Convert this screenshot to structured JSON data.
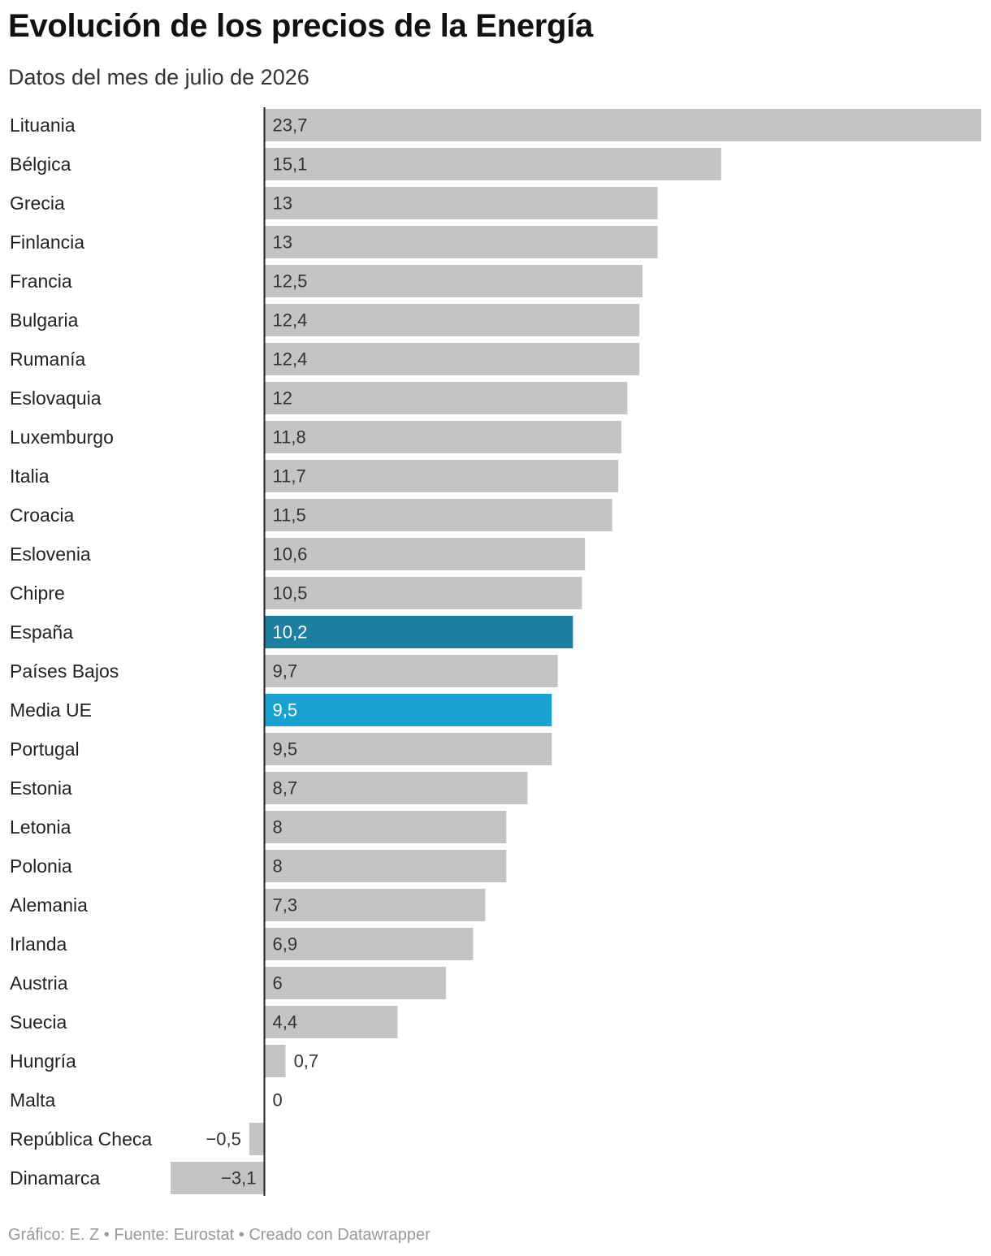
{
  "chart_data": {
    "type": "bar",
    "orientation": "horizontal",
    "title": "Evolución de los precios de la Energía",
    "subtitle": "Datos del mes de julio de 2026",
    "categories": [
      "Lituania",
      "Bélgica",
      "Grecia",
      "Finlancia",
      "Francia",
      "Bulgaria",
      "Rumanía",
      "Eslovaquia",
      "Luxemburgo",
      "Italia",
      "Croacia",
      "Eslovenia",
      "Chipre",
      "España",
      "Países Bajos",
      "Media UE",
      "Portugal",
      "Estonia",
      "Letonia",
      "Polonia",
      "Alemania",
      "Irlanda",
      "Austria",
      "Suecia",
      "Hungría",
      "Malta",
      "República Checa",
      "Dinamarca"
    ],
    "values": [
      23.7,
      15.1,
      13,
      13,
      12.5,
      12.4,
      12.4,
      12,
      11.8,
      11.7,
      11.5,
      10.6,
      10.5,
      10.2,
      9.7,
      9.5,
      9.5,
      8.7,
      8,
      8,
      7.3,
      6.9,
      6,
      4.4,
      0.7,
      0,
      -0.5,
      -3.1
    ],
    "value_labels": [
      "23,7",
      "15,1",
      "13",
      "13",
      "12,5",
      "12,4",
      "12,4",
      "12",
      "11,8",
      "11,7",
      "11,5",
      "10,6",
      "10,5",
      "10,2",
      "9,7",
      "9,5",
      "9,5",
      "8,7",
      "8",
      "8",
      "7,3",
      "6,9",
      "6",
      "4,4",
      "0,7",
      "0",
      "−0,5",
      "−3,1"
    ],
    "highlights": {
      "España": "#1d7fa0",
      "Media UE": "#19a2d0"
    },
    "default_color": "#c4c4c4",
    "xlim": [
      -3.1,
      23.7
    ],
    "grid": false,
    "legend": "none"
  },
  "footer": {
    "text": "Gráfico: E. Z • Fuente: Eurostat • Creado con Datawrapper"
  }
}
